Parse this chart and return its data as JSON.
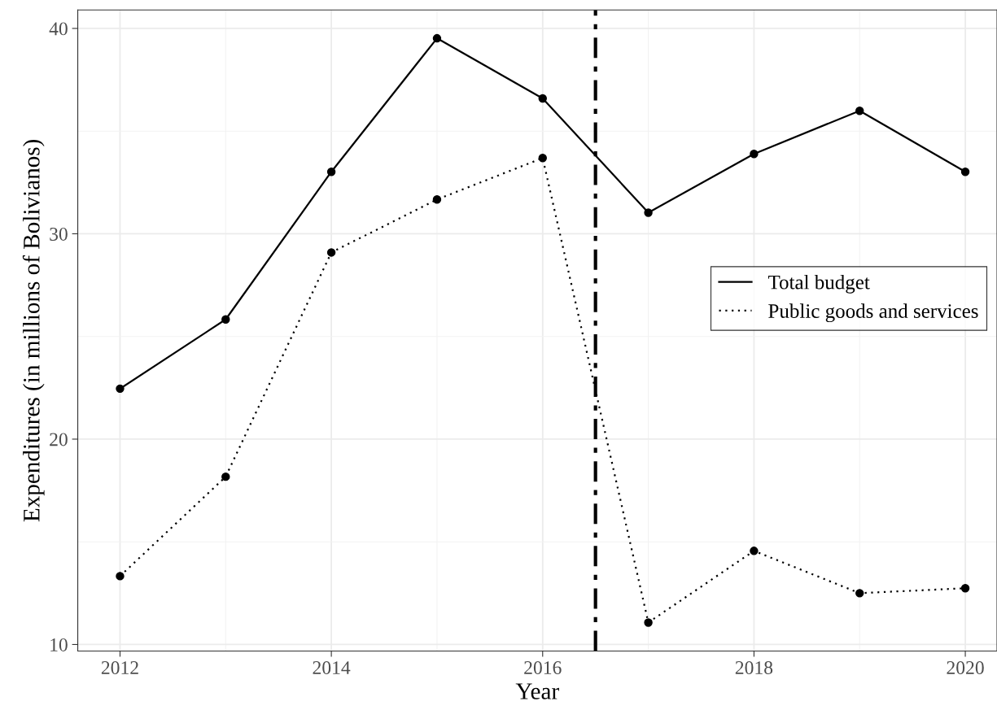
{
  "chart_data": {
    "type": "line",
    "xlabel": "Year",
    "ylabel": "Expenditures (in millions of Bolivianos)",
    "x": [
      2012,
      2013,
      2014,
      2015,
      2016,
      2017,
      2018,
      2019,
      2020
    ],
    "series": [
      {
        "name": "Total budget",
        "color": "#000000",
        "line_style": "solid",
        "values": [
          22.46,
          25.83,
          33.02,
          39.52,
          36.59,
          31.03,
          33.89,
          35.99,
          33.02
        ]
      },
      {
        "name": "Public goods and services",
        "color": "#000000",
        "line_style": "dotted",
        "values": [
          13.33,
          18.17,
          29.09,
          31.67,
          33.69,
          11.07,
          14.56,
          12.5,
          12.74
        ]
      }
    ],
    "xlim": [
      2011.6,
      2020.3
    ],
    "ylim": [
      9.68,
      40.9
    ],
    "xticks": [
      2012,
      2014,
      2016,
      2018,
      2020
    ],
    "yticks": [
      10,
      20,
      30,
      40
    ],
    "ref_lines": [
      {
        "axis": "x",
        "value": 2016.5,
        "color": "#000000",
        "line_style": "dashdot"
      }
    ],
    "grid": true,
    "legend": "right",
    "marker": "circle"
  }
}
